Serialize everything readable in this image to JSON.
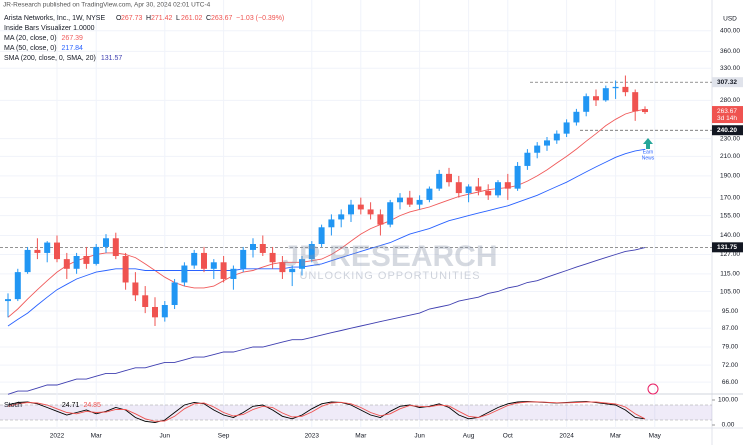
{
  "chart_data": {
    "type": "candlestick",
    "publisher": "JR-Research published on TradingView.com, Apr 30, 2024 02:01 UTC-4",
    "symbol": "Arista Networks, Inc., 1W, NYSE",
    "ohlc_letters": [
      "O",
      "H",
      "L",
      "C"
    ],
    "change": "−1.03 (−0.39%)",
    "study": "Inside Bars Visualizer 1.0000",
    "currency": "USD",
    "watermark": "JR RESEARCH",
    "watermark_sub": "UNLOCKING OPPORTUNITIES",
    "annotation": [
      "Earn",
      "News"
    ],
    "countdown": "3d 14h",
    "log_scale": true,
    "grid": true,
    "up_color": "#2196f3",
    "down_color": "#ef5350",
    "categories": [
      null,
      null,
      null,
      null,
      null,
      "2022",
      null,
      null,
      null,
      "Mar",
      null,
      null,
      null,
      null,
      null,
      null,
      "Jun",
      null,
      null,
      null,
      null,
      null,
      "Sep",
      null,
      null,
      null,
      null,
      null,
      null,
      null,
      null,
      "2023",
      null,
      null,
      null,
      null,
      "Mar",
      null,
      null,
      null,
      null,
      null,
      "Jun",
      null,
      null,
      null,
      null,
      "Aug",
      null,
      null,
      null,
      "Oct",
      null,
      null,
      null,
      null,
      null,
      "2024",
      null,
      null,
      null,
      null,
      "Mar",
      null,
      null,
      null,
      "May",
      null
    ],
    "candles": [
      [
        100,
        104,
        92,
        101
      ],
      [
        101,
        118,
        100,
        116
      ],
      [
        116,
        132,
        115,
        130
      ],
      [
        130,
        138,
        124,
        128
      ],
      [
        128,
        136,
        122,
        135
      ],
      [
        135,
        140,
        122,
        124
      ],
      [
        124,
        128,
        112,
        118
      ],
      [
        118,
        128,
        115,
        126
      ],
      [
        126,
        132,
        118,
        121
      ],
      [
        121,
        134,
        120,
        132
      ],
      [
        132,
        141,
        128,
        138
      ],
      [
        138,
        142,
        124,
        126
      ],
      [
        126,
        128,
        106,
        110
      ],
      [
        110,
        116,
        100,
        103
      ],
      [
        103,
        108,
        94,
        97
      ],
      [
        97,
        102,
        88,
        92
      ],
      [
        92,
        100,
        90,
        98
      ],
      [
        98,
        112,
        96,
        110
      ],
      [
        110,
        122,
        108,
        120
      ],
      [
        120,
        130,
        118,
        128
      ],
      [
        128,
        132,
        116,
        118
      ],
      [
        118,
        124,
        112,
        122
      ],
      [
        122,
        126,
        110,
        112
      ],
      [
        112,
        120,
        106,
        118
      ],
      [
        118,
        132,
        116,
        130
      ],
      [
        130,
        138,
        125,
        134
      ],
      [
        134,
        140,
        126,
        128
      ],
      [
        128,
        132,
        118,
        122
      ],
      [
        122,
        126,
        112,
        116
      ],
      [
        116,
        120,
        108,
        118
      ],
      [
        118,
        126,
        114,
        124
      ],
      [
        124,
        136,
        122,
        134
      ],
      [
        134,
        148,
        132,
        146
      ],
      [
        146,
        156,
        140,
        152
      ],
      [
        152,
        160,
        146,
        156
      ],
      [
        156,
        168,
        150,
        164
      ],
      [
        164,
        170,
        156,
        160
      ],
      [
        160,
        166,
        152,
        156
      ],
      [
        156,
        160,
        140,
        148
      ],
      [
        148,
        168,
        146,
        166
      ],
      [
        166,
        174,
        160,
        170
      ],
      [
        170,
        176,
        162,
        164
      ],
      [
        164,
        172,
        160,
        168
      ],
      [
        168,
        180,
        166,
        178
      ],
      [
        178,
        196,
        176,
        192
      ],
      [
        192,
        198,
        180,
        184
      ],
      [
        184,
        190,
        170,
        174
      ],
      [
        174,
        182,
        166,
        180
      ],
      [
        180,
        188,
        172,
        176
      ],
      [
        176,
        182,
        168,
        172
      ],
      [
        172,
        186,
        170,
        184
      ],
      [
        184,
        192,
        168,
        178
      ],
      [
        178,
        204,
        176,
        200
      ],
      [
        200,
        218,
        196,
        214
      ],
      [
        214,
        226,
        208,
        222
      ],
      [
        222,
        232,
        216,
        228
      ],
      [
        228,
        240,
        224,
        236
      ],
      [
        236,
        254,
        232,
        250
      ],
      [
        250,
        268,
        246,
        264
      ],
      [
        264,
        290,
        258,
        286
      ],
      [
        286,
        296,
        272,
        280
      ],
      [
        280,
        302,
        278,
        298
      ],
      [
        298,
        310,
        282,
        300
      ],
      [
        300,
        318,
        286,
        292
      ],
      [
        292,
        296,
        252,
        264.7
      ],
      [
        267.73,
        271.42,
        261.02,
        263.67
      ],
      null,
      null
    ],
    "series": [
      {
        "name": "MA (20, close, 0)",
        "color": "#f05a5a",
        "values": [
          92,
          96,
          101,
          106,
          111,
          116,
          120,
          123,
          125,
          127,
          128,
          128,
          127,
          125,
          121,
          117,
          113,
          110,
          108,
          107,
          107,
          108,
          111,
          114,
          116,
          117,
          119,
          121,
          122,
          122,
          122,
          123,
          124,
          127,
          131,
          136,
          141,
          145,
          148,
          151,
          155,
          158,
          160,
          162,
          165,
          168,
          171,
          173,
          175,
          177,
          178,
          179,
          181,
          185,
          190,
          196,
          203,
          210,
          218,
          227,
          236,
          246,
          254,
          261,
          265,
          267.39,
          null,
          null
        ]
      },
      {
        "name": "MA (50, close, 0)",
        "color": "#2962ff",
        "values": [
          88,
          91,
          94,
          98,
          102,
          106,
          109,
          112,
          114,
          116,
          117,
          118,
          118,
          118,
          117,
          117,
          117,
          117,
          117,
          117,
          117,
          117,
          117,
          117,
          118,
          118,
          118,
          118,
          118,
          119,
          119,
          120,
          121,
          123,
          125,
          127,
          129,
          131,
          133,
          135,
          138,
          141,
          143,
          145,
          148,
          151,
          153,
          155,
          157,
          159,
          161,
          163,
          166,
          169,
          172,
          176,
          180,
          184,
          189,
          194,
          199,
          204,
          209,
          213,
          216,
          217.84,
          null,
          null
        ]
      },
      {
        "name": "SMA (200, close, 0, SMA, 20)",
        "color": "#3f3fb0",
        "values": [
          62,
          63,
          63,
          64,
          65,
          65,
          66,
          67,
          67,
          68,
          69,
          69,
          70,
          71,
          71,
          72,
          73,
          73,
          74,
          75,
          75,
          76,
          77,
          77,
          78,
          79,
          79,
          80,
          81,
          82,
          82,
          83,
          84,
          85,
          86,
          87,
          88,
          89,
          90,
          91,
          92,
          93,
          94,
          96,
          97,
          98,
          100,
          101,
          102,
          104,
          105,
          107,
          108,
          110,
          111,
          113,
          115,
          117,
          119,
          121,
          123,
          125,
          127,
          129,
          130,
          131.57,
          null,
          null
        ]
      }
    ],
    "ylim": [
      62.4,
      436
    ],
    "yticks": [
      {
        "value": 400,
        "label": "400.00"
      },
      {
        "value": 360,
        "label": "360.00"
      },
      {
        "value": 330,
        "label": "330.00"
      },
      {
        "value": 280,
        "label": "280.00"
      },
      {
        "value": 230,
        "label": "230.00"
      },
      {
        "value": 210,
        "label": "210.00"
      },
      {
        "value": 190,
        "label": "190.00"
      },
      {
        "value": 170,
        "label": "170.00"
      },
      {
        "value": 155,
        "label": "155.00"
      },
      {
        "value": 140,
        "label": "140.00"
      },
      {
        "value": 127,
        "label": "127.00"
      },
      {
        "value": 115,
        "label": "115.00"
      },
      {
        "value": 105,
        "label": "105.00"
      },
      {
        "value": 95,
        "label": "95.00"
      },
      {
        "value": 87,
        "label": "87.00"
      },
      {
        "value": 79,
        "label": "79.00"
      },
      {
        "value": 72,
        "label": "72.00"
      },
      {
        "value": 66,
        "label": "66.00"
      }
    ],
    "levels": [
      307.32,
      {
        "value": 240.2,
        "label": "240.20"
      },
      131.75
    ],
    "stoch": {
      "name": "Stoch",
      "ylim": [
        0,
        100
      ],
      "yticks": [
        {
          "value": 100,
          "label": "100.00"
        },
        {
          "value": 0,
          "label": "0.00"
        }
      ],
      "bands": [
        20,
        80
      ],
      "series": [
        {
          "color": "#000000",
          "values": [
            80,
            90,
            92,
            85,
            70,
            55,
            40,
            50,
            60,
            45,
            55,
            70,
            60,
            30,
            15,
            10,
            20,
            50,
            80,
            90,
            85,
            60,
            40,
            30,
            50,
            75,
            80,
            60,
            35,
            25,
            40,
            65,
            85,
            92,
            90,
            80,
            60,
            40,
            30,
            55,
            75,
            80,
            70,
            75,
            85,
            70,
            40,
            25,
            30,
            50,
            70,
            85,
            92,
            94,
            92,
            90,
            88,
            90,
            92,
            94,
            90,
            85,
            80,
            60,
            30,
            24.71,
            null,
            null
          ]
        },
        {
          "color": "#ef5350",
          "values": [
            75,
            85,
            90,
            88,
            80,
            65,
            50,
            45,
            55,
            50,
            52,
            62,
            62,
            45,
            25,
            15,
            16,
            35,
            65,
            85,
            88,
            72,
            50,
            36,
            42,
            62,
            75,
            70,
            48,
            32,
            35,
            52,
            75,
            88,
            91,
            85,
            70,
            50,
            37,
            45,
            65,
            78,
            75,
            73,
            80,
            76,
            55,
            35,
            30,
            42,
            60,
            78,
            88,
            92,
            93,
            91,
            89,
            89,
            90,
            92,
            92,
            88,
            84,
            72,
            45,
            24.85,
            null,
            null
          ]
        }
      ]
    }
  }
}
